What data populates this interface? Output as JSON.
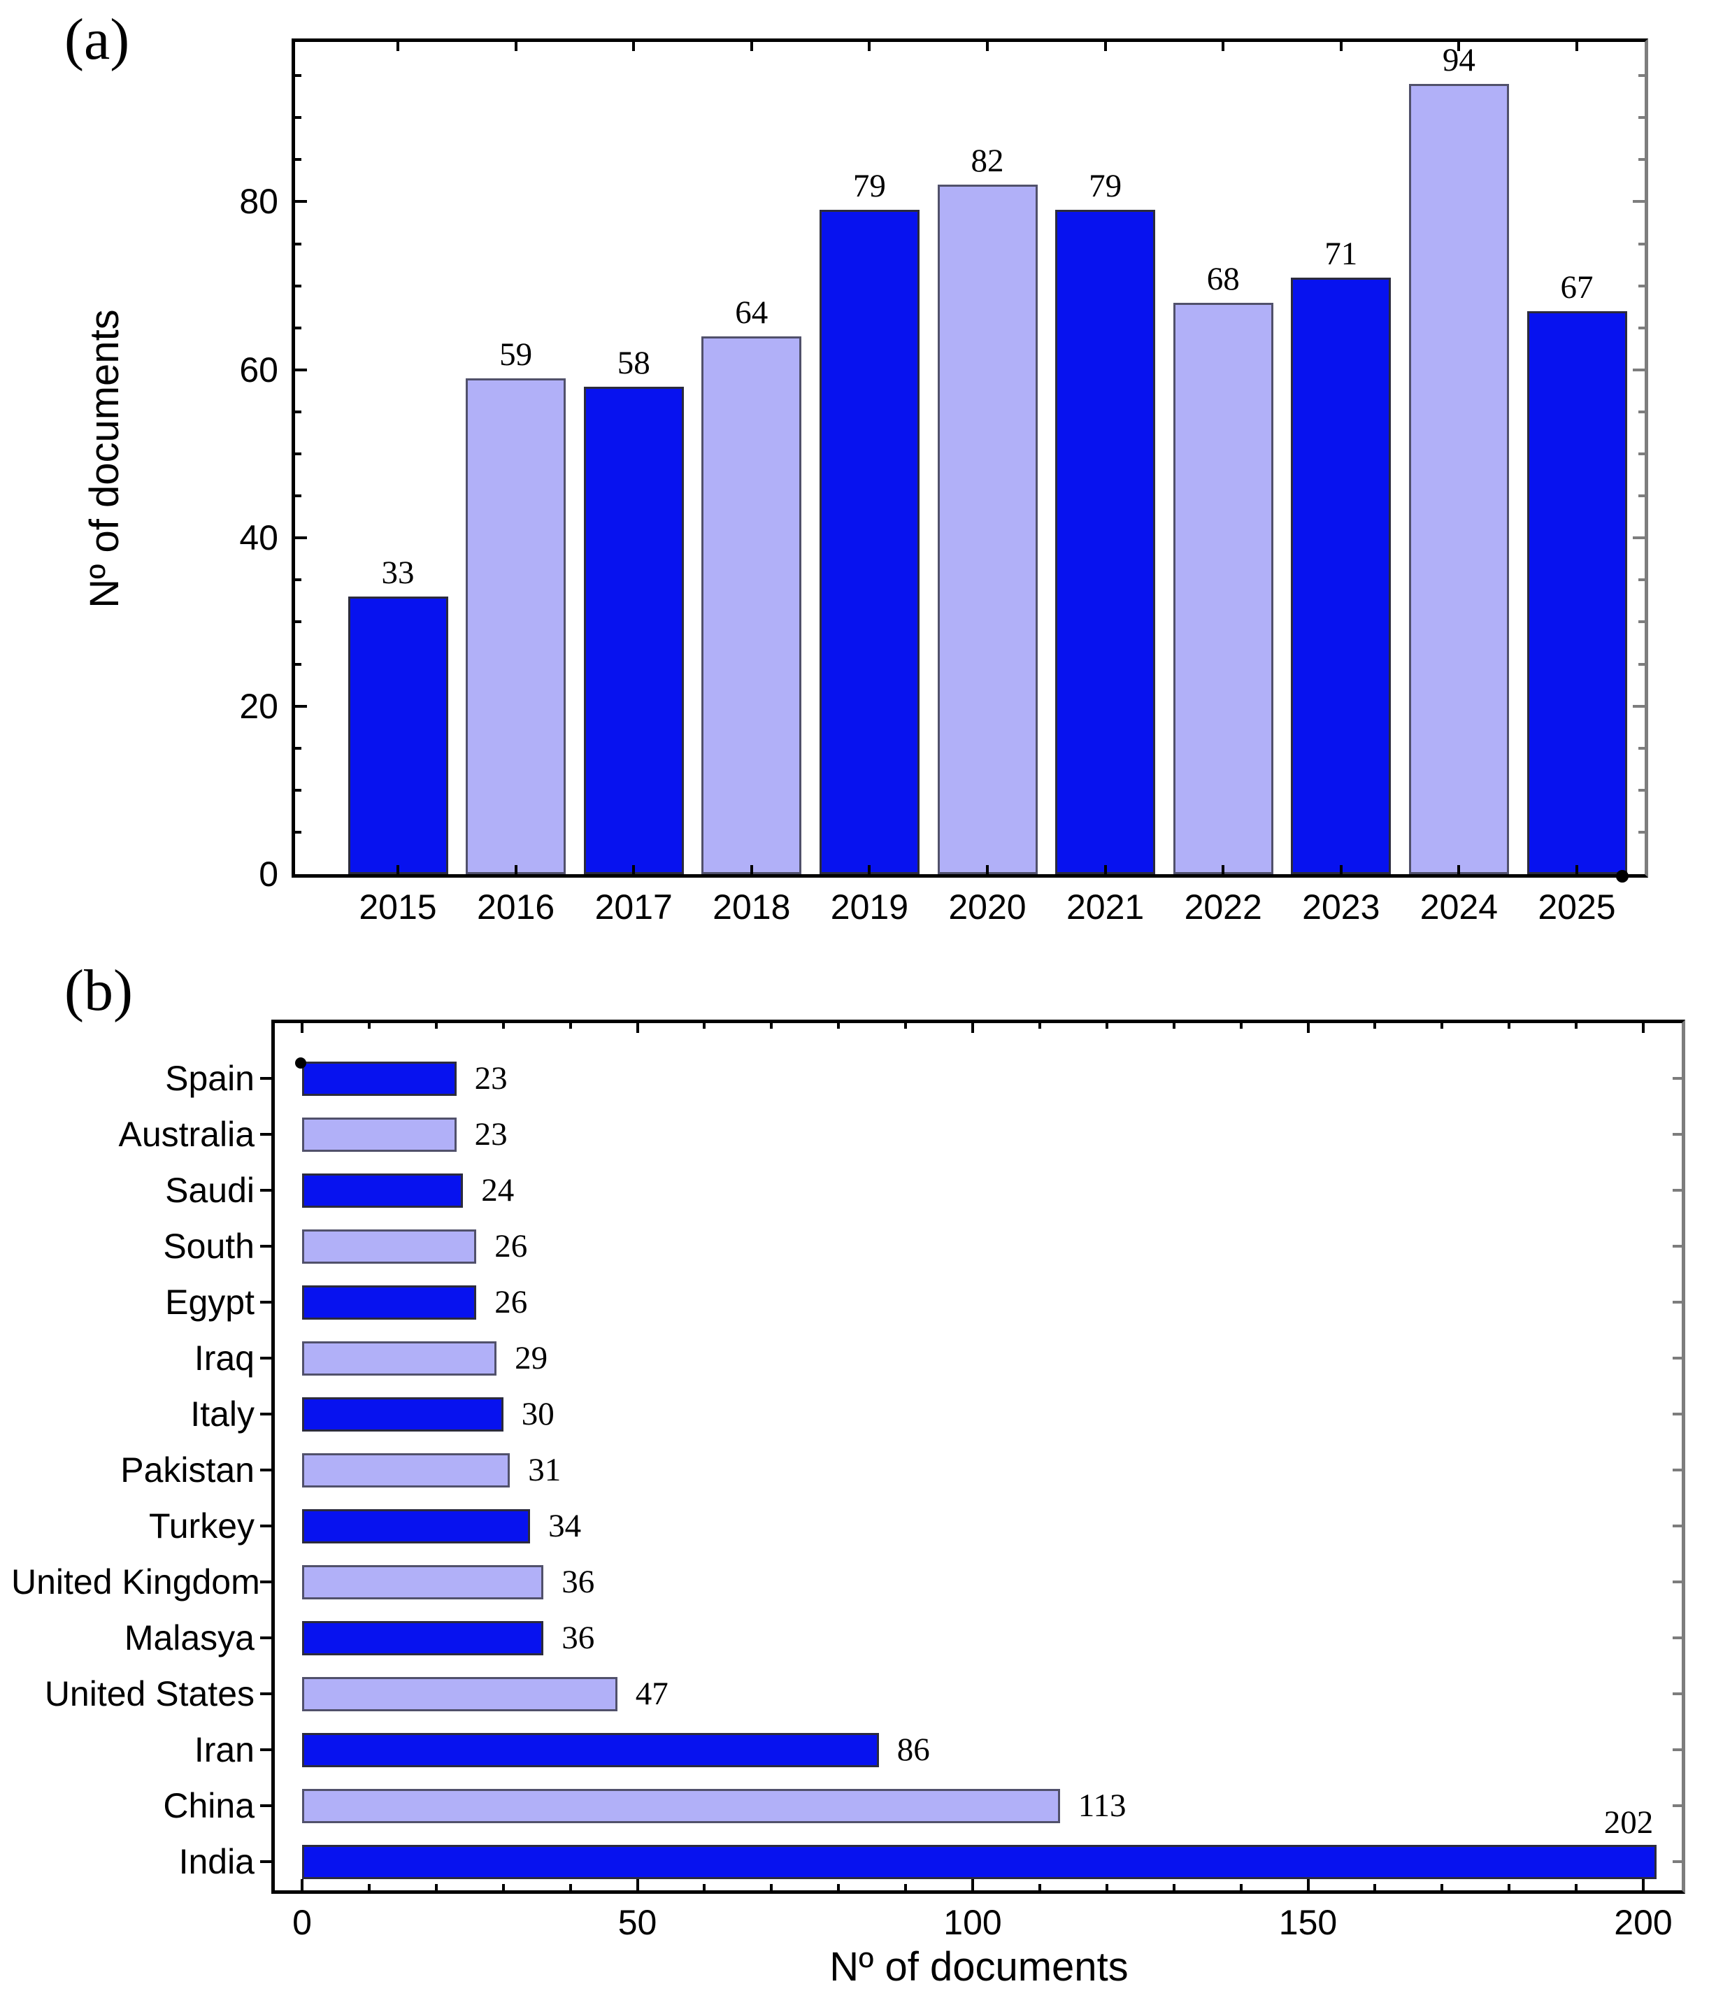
{
  "figure": {
    "panel_a_label": "(a)",
    "panel_b_label": "(b)"
  },
  "colors": {
    "bar_dark": "#0712ef",
    "bar_light": "#b1b0f8",
    "bar_dark_edge": "#2b2b3d",
    "bar_light_edge": "#51516b",
    "frame": "#000000",
    "right_spine": "#7d7d7d",
    "marker": "#000000"
  },
  "chart_data": [
    {
      "type": "bar",
      "panel": "a",
      "orientation": "vertical",
      "title": "",
      "xlabel": "",
      "ylabel": "Nº of documents",
      "categories": [
        "2015",
        "2016",
        "2017",
        "2018",
        "2019",
        "2020",
        "2021",
        "2022",
        "2023",
        "2024",
        "2025"
      ],
      "values": [
        33,
        59,
        58,
        64,
        79,
        82,
        79,
        68,
        71,
        94,
        67
      ],
      "bar_color_pattern": [
        "dark",
        "light"
      ],
      "ylim": [
        0,
        99
      ],
      "yticks_major": [
        0,
        20,
        40,
        60,
        80
      ],
      "ytick_minor_step": 5,
      "grid": false,
      "value_labels_shown": true
    },
    {
      "type": "bar",
      "panel": "b",
      "orientation": "horizontal",
      "title": "",
      "xlabel": "Nº of documents",
      "ylabel": "",
      "categories": [
        "Spain",
        "Australia",
        "Saudi",
        "South",
        "Egypt",
        "Iraq",
        "Italy",
        "Pakistan",
        "Turkey",
        "United Kingdom",
        "Malasya",
        "United States",
        "Iran",
        "China",
        "India"
      ],
      "values": [
        23,
        23,
        24,
        26,
        26,
        29,
        30,
        31,
        34,
        36,
        36,
        47,
        86,
        113,
        202
      ],
      "bar_color_pattern": [
        "dark",
        "light"
      ],
      "xlim": [
        -5,
        206
      ],
      "xticks_major": [
        0,
        50,
        100,
        150,
        200
      ],
      "xtick_minor_step": 10,
      "grid": false,
      "value_labels_shown": true
    }
  ]
}
